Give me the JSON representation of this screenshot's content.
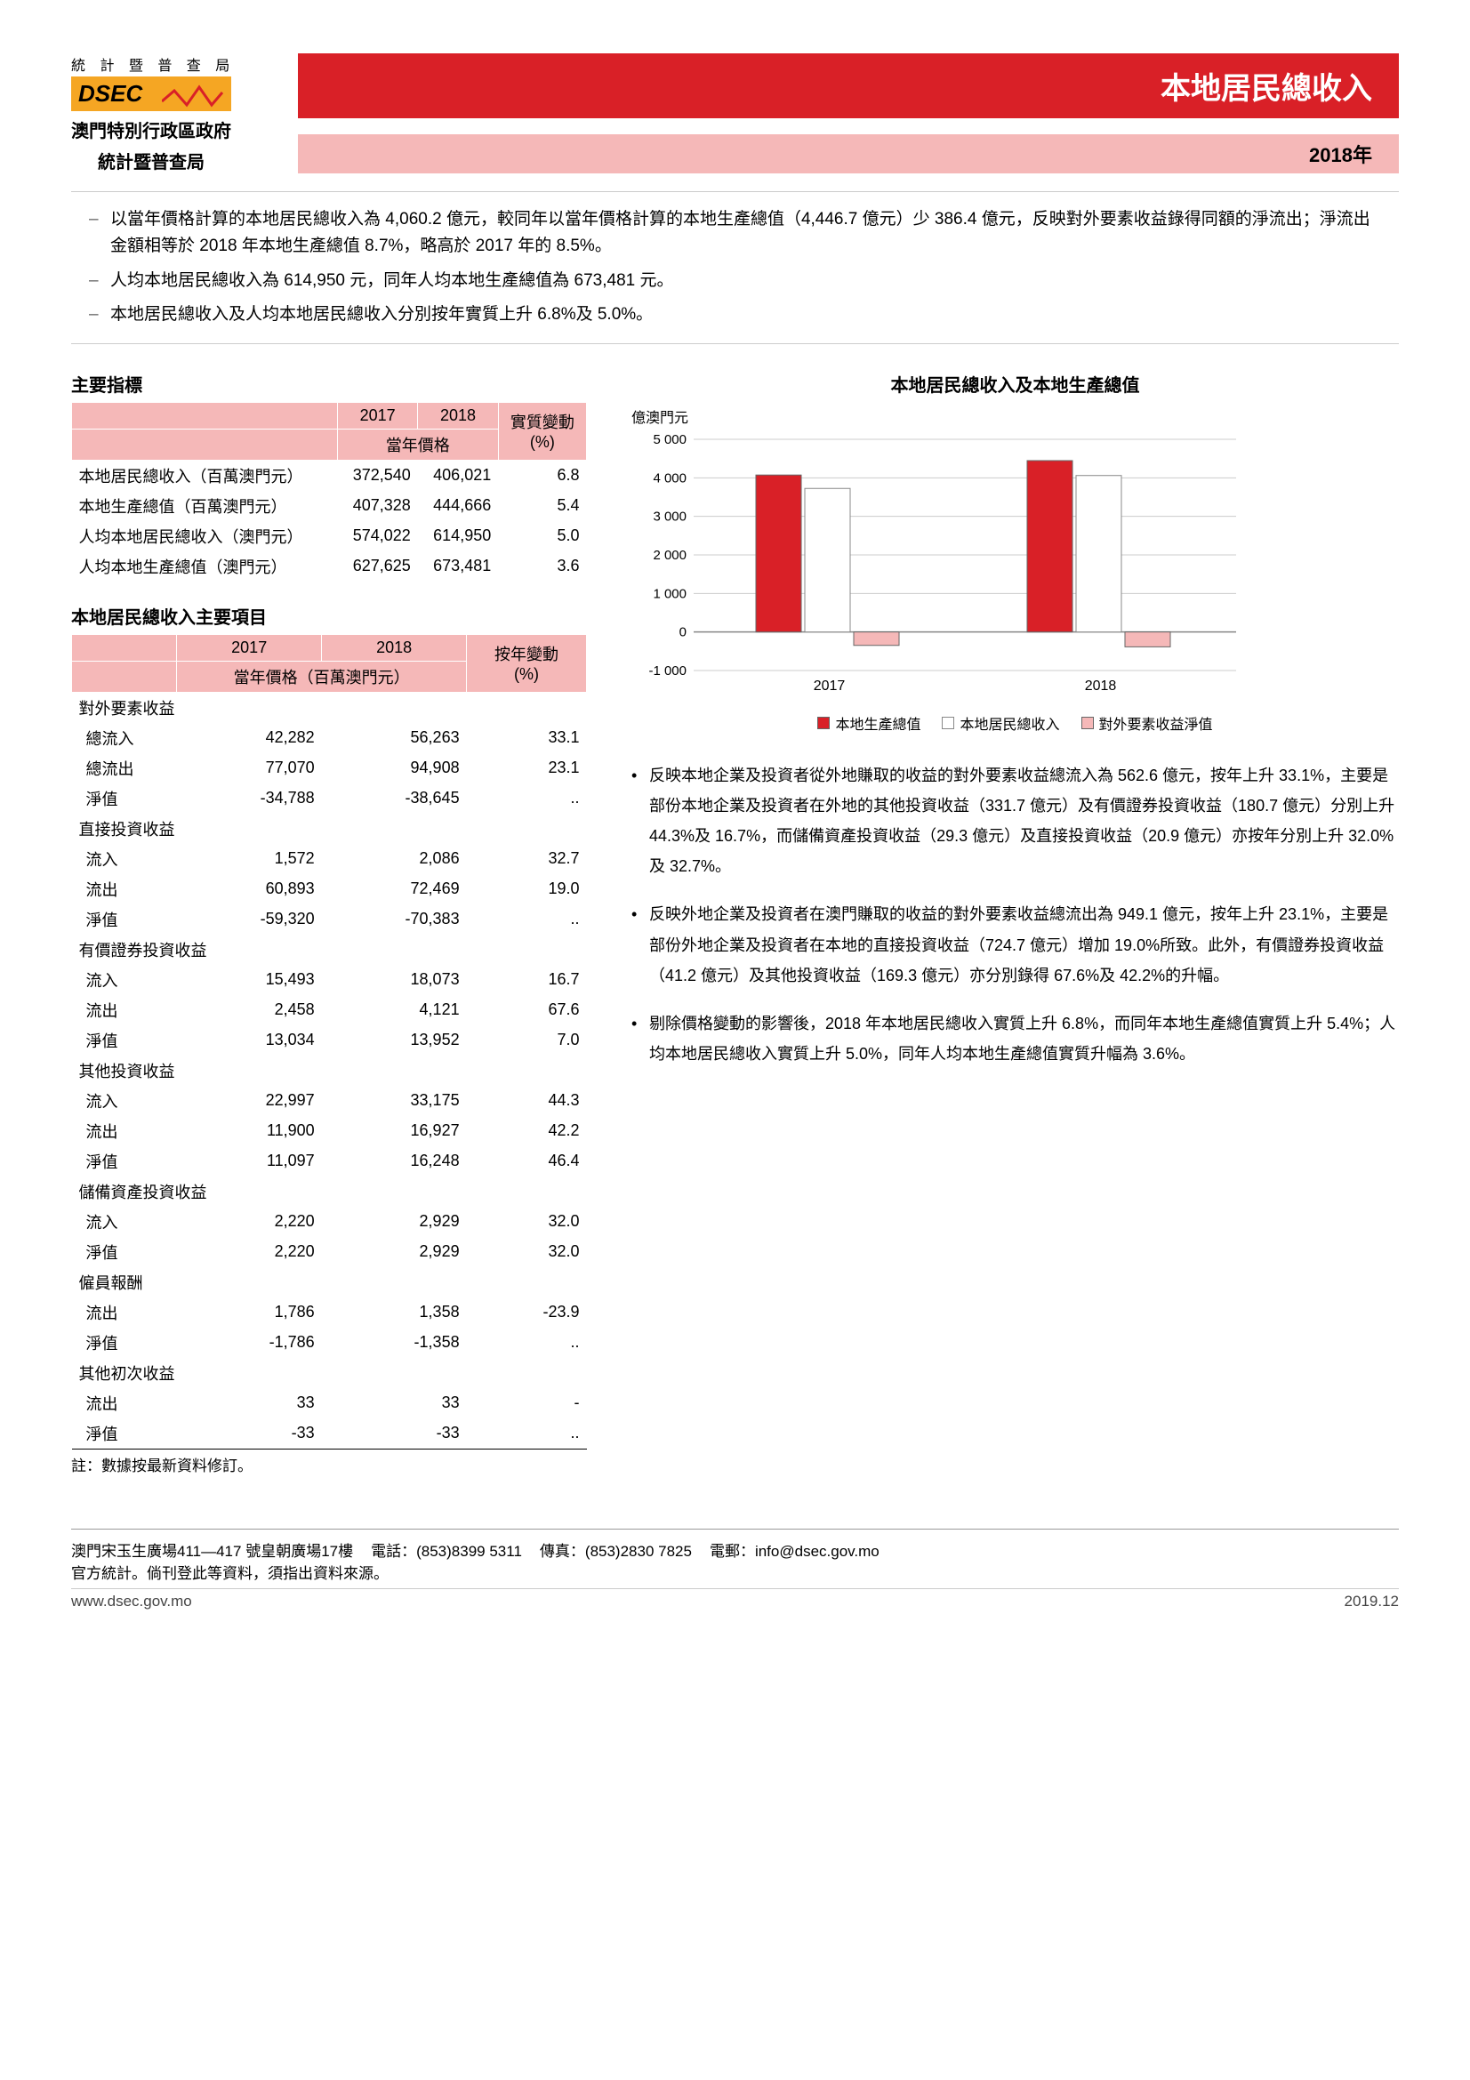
{
  "header": {
    "logo_top": "統 計 暨 普 查 局",
    "logo_text": "DSEC",
    "logo_sub1": "澳門特別行政區政府",
    "logo_sub2": "統計暨普查局",
    "red_banner": "本地居民總收入",
    "pink_banner": "2018年"
  },
  "bullets": [
    "以當年價格計算的本地居民總收入為 4,060.2 億元，較同年以當年價格計算的本地生產總值（4,446.7 億元）少 386.4 億元，反映對外要素收益錄得同額的淨流出；淨流出金額相等於 2018 年本地生產總值 8.7%，略高於 2017 年的 8.5%。",
    "人均本地居民總收入為 614,950 元，同年人均本地生產總值為 673,481 元。",
    "本地居民總收入及人均本地居民總收入分別按年實質上升 6.8%及 5.0%。"
  ],
  "table1": {
    "title": "主要指標",
    "h_2017": "2017",
    "h_2018": "2018",
    "h_change": "實質變動",
    "h_price": "當年價格",
    "h_pct": "(%)",
    "rows": [
      {
        "label": "本地居民總收入（百萬澳門元）",
        "v2017": "372,540",
        "v2018": "406,021",
        "chg": "6.8"
      },
      {
        "label": "本地生產總值（百萬澳門元）",
        "v2017": "407,328",
        "v2018": "444,666",
        "chg": "5.4"
      },
      {
        "label": "人均本地居民總收入（澳門元）",
        "v2017": "574,022",
        "v2018": "614,950",
        "chg": "5.0"
      },
      {
        "label": "人均本地生產總值（澳門元）",
        "v2017": "627,625",
        "v2018": "673,481",
        "chg": "3.6"
      }
    ]
  },
  "table2": {
    "title": "本地居民總收入主要項目",
    "h_2017": "2017",
    "h_2018": "2018",
    "h_change": "按年變動",
    "h_price": "當年價格（百萬澳門元）",
    "h_pct": "(%)",
    "groups": [
      {
        "name": "對外要素收益",
        "rows": [
          {
            "label": "總流入",
            "v2017": "42,282",
            "v2018": "56,263",
            "chg": "33.1"
          },
          {
            "label": "總流出",
            "v2017": "77,070",
            "v2018": "94,908",
            "chg": "23.1"
          },
          {
            "label": "淨值",
            "v2017": "-34,788",
            "v2018": "-38,645",
            "chg": ".."
          }
        ]
      },
      {
        "name": "直接投資收益",
        "rows": [
          {
            "label": "流入",
            "v2017": "1,572",
            "v2018": "2,086",
            "chg": "32.7"
          },
          {
            "label": "流出",
            "v2017": "60,893",
            "v2018": "72,469",
            "chg": "19.0"
          },
          {
            "label": "淨值",
            "v2017": "-59,320",
            "v2018": "-70,383",
            "chg": ".."
          }
        ]
      },
      {
        "name": "有價證券投資收益",
        "rows": [
          {
            "label": "流入",
            "v2017": "15,493",
            "v2018": "18,073",
            "chg": "16.7"
          },
          {
            "label": "流出",
            "v2017": "2,458",
            "v2018": "4,121",
            "chg": "67.6"
          },
          {
            "label": "淨值",
            "v2017": "13,034",
            "v2018": "13,952",
            "chg": "7.0"
          }
        ]
      },
      {
        "name": "其他投資收益",
        "rows": [
          {
            "label": "流入",
            "v2017": "22,997",
            "v2018": "33,175",
            "chg": "44.3"
          },
          {
            "label": "流出",
            "v2017": "11,900",
            "v2018": "16,927",
            "chg": "42.2"
          },
          {
            "label": "淨值",
            "v2017": "11,097",
            "v2018": "16,248",
            "chg": "46.4"
          }
        ]
      },
      {
        "name": "儲備資產投資收益",
        "rows": [
          {
            "label": "流入",
            "v2017": "2,220",
            "v2018": "2,929",
            "chg": "32.0"
          },
          {
            "label": "淨值",
            "v2017": "2,220",
            "v2018": "2,929",
            "chg": "32.0"
          }
        ]
      },
      {
        "name": "僱員報酬",
        "rows": [
          {
            "label": "流出",
            "v2017": "1,786",
            "v2018": "1,358",
            "chg": "-23.9"
          },
          {
            "label": "淨值",
            "v2017": "-1,786",
            "v2018": "-1,358",
            "chg": ".."
          }
        ]
      },
      {
        "name": "其他初次收益",
        "rows": [
          {
            "label": "流出",
            "v2017": "33",
            "v2018": "33",
            "chg": "-"
          },
          {
            "label": "淨值",
            "v2017": "-33",
            "v2018": "-33",
            "chg": ".."
          }
        ]
      }
    ],
    "note": "註：數據按最新資料修訂。"
  },
  "chart": {
    "title": "本地居民總收入及本地生產總值",
    "ylabel": "億澳門元",
    "yticks": [
      "-1 000",
      "0",
      "1 000",
      "2 000",
      "3 000",
      "4 000",
      "5 000"
    ],
    "categories": [
      "2017",
      "2018"
    ],
    "series": [
      {
        "name": "本地生產總值",
        "color": "#d92027",
        "values": [
          4073,
          4447
        ]
      },
      {
        "name": "本地居民總收入",
        "color": "#ffffff",
        "border": "#888888",
        "values": [
          3725,
          4060
        ]
      },
      {
        "name": "對外要素收益淨值",
        "color": "#f5b8b8",
        "values": [
          -348,
          -386
        ]
      }
    ],
    "ylim_min": -1000,
    "ylim_max": 5000,
    "background_color": "#ffffff",
    "grid_color": "#cccccc"
  },
  "analysis": [
    "反映本地企業及投資者從外地賺取的收益的對外要素收益總流入為 562.6 億元，按年上升 33.1%，主要是部份本地企業及投資者在外地的其他投資收益（331.7 億元）及有價證券投資收益（180.7 億元）分別上升 44.3%及 16.7%，而儲備資產投資收益（29.3 億元）及直接投資收益（20.9 億元）亦按年分別上升 32.0%及 32.7%。",
    "反映外地企業及投資者在澳門賺取的收益的對外要素收益總流出為 949.1 億元，按年上升 23.1%，主要是部份外地企業及投資者在本地的直接投資收益（724.7 億元）增加 19.0%所致。此外，有價證券投資收益（41.2 億元）及其他投資收益（169.3 億元）亦分別錄得 67.6%及 42.2%的升幅。",
    "剔除價格變動的影響後，2018 年本地居民總收入實質上升 6.8%，而同年本地生產總值實質上升 5.4%；人均本地居民總收入實質上升 5.0%，同年人均本地生產總值實質升幅為 3.6%。"
  ],
  "footer": {
    "address": "澳門宋玉生廣場411—417 號皇朝廣場17樓",
    "tel_label": "電話：",
    "tel": "(853)8399 5311",
    "fax_label": "傳真：",
    "fax": "(853)2830 7825",
    "email_label": "電郵：",
    "email": "info@dsec.gov.mo",
    "disclaimer": "官方統計。倘刊登此等資料，須指出資料來源。",
    "website": "www.dsec.gov.mo",
    "date": "2019.12"
  }
}
